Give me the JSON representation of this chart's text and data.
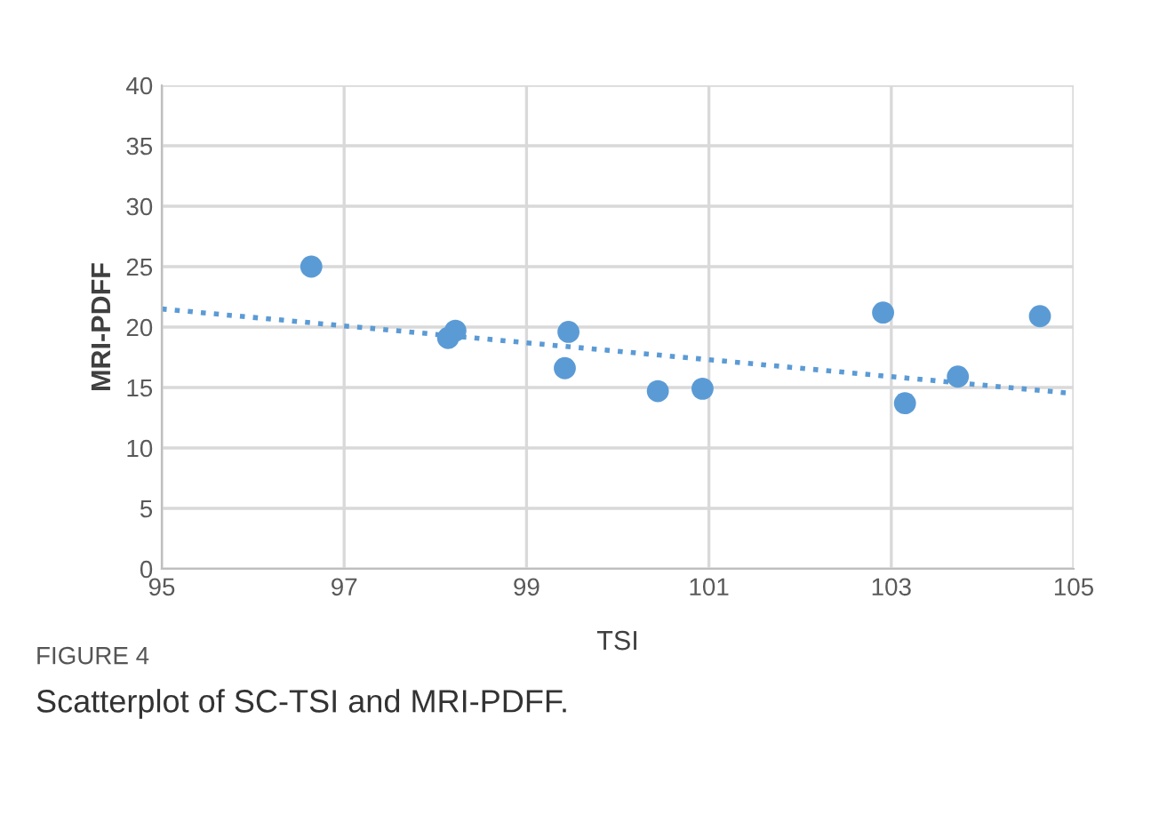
{
  "chart_data": {
    "type": "scatter",
    "xlabel": "TSI",
    "ylabel": "MRI-PDFF",
    "xlim": [
      95,
      105
    ],
    "xticks": [
      95,
      97,
      99,
      101,
      103,
      105
    ],
    "ylim": [
      0,
      40
    ],
    "yticks": [
      0,
      5,
      10,
      15,
      20,
      25,
      30,
      35,
      40
    ],
    "grid": true,
    "series": [
      {
        "marker": "circle",
        "color": "#5b9bd5",
        "x": [
          96.64,
          98.14,
          98.22,
          99.42,
          99.46,
          100.44,
          100.93,
          102.91,
          103.15,
          103.73,
          104.63
        ],
        "values": [
          25.0,
          19.1,
          19.7,
          16.6,
          19.6,
          14.7,
          14.9,
          21.2,
          13.7,
          15.9,
          20.9
        ]
      },
      {
        "type": "line",
        "color": "#5b9bd5",
        "line_style": "dotted",
        "marker": "none",
        "x": [
          95,
          105
        ],
        "values": [
          21.5,
          14.5
        ]
      }
    ],
    "annotations": [
      "FIGURE 4",
      "Scatterplot of SC-TSI and MRI-PDFF."
    ]
  }
}
